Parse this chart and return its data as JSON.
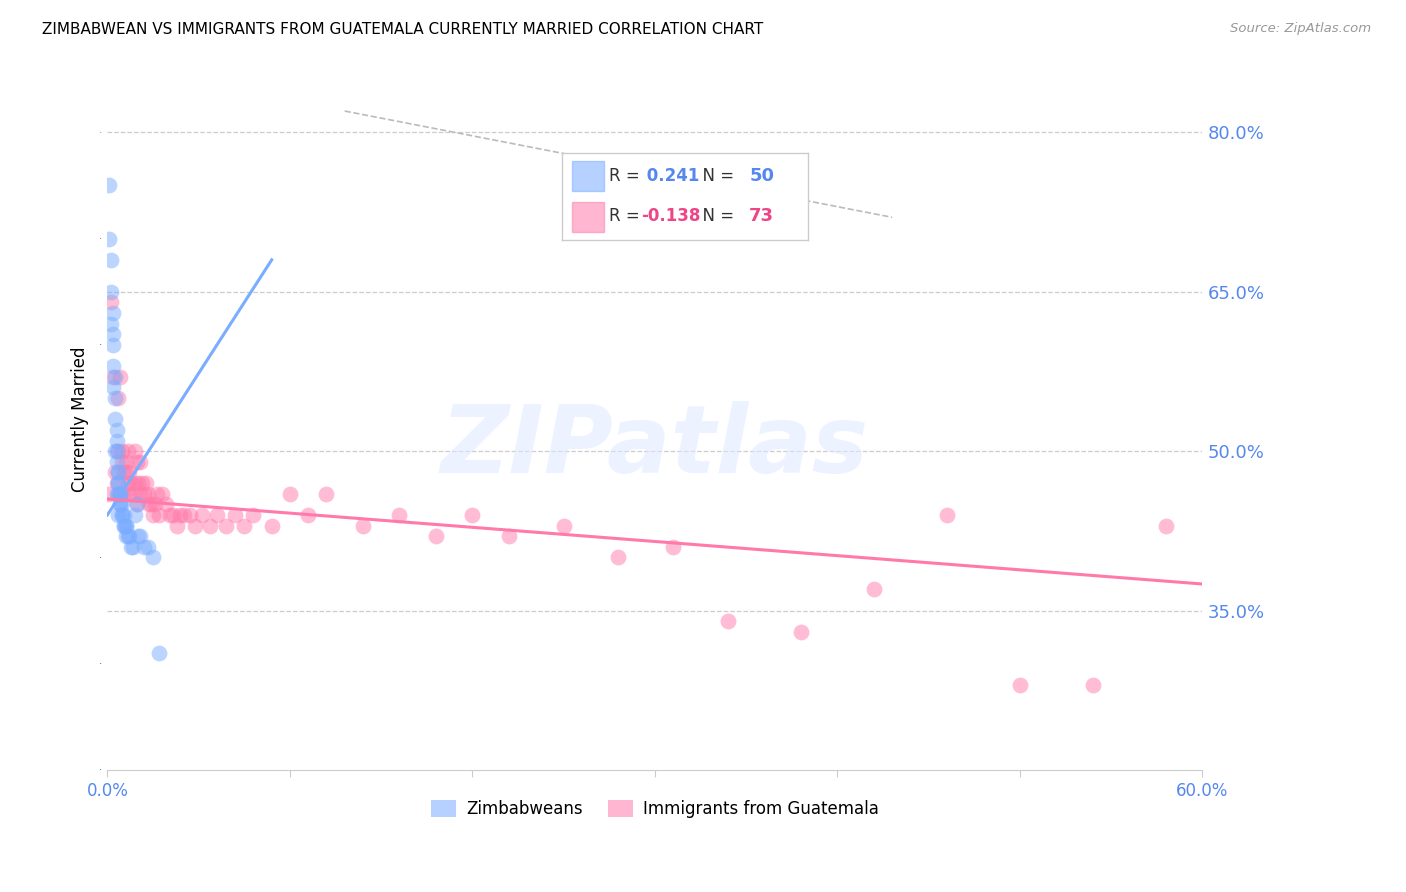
{
  "title": "ZIMBABWEAN VS IMMIGRANTS FROM GUATEMALA CURRENTLY MARRIED CORRELATION CHART",
  "source": "Source: ZipAtlas.com",
  "ylabel": "Currently Married",
  "ytick_labels": [
    "80.0%",
    "65.0%",
    "50.0%",
    "35.0%"
  ],
  "ytick_values": [
    0.8,
    0.65,
    0.5,
    0.35
  ],
  "xmin": 0.0,
  "xmax": 0.6,
  "ymin": 0.2,
  "ymax": 0.86,
  "R_zimbabwean": 0.241,
  "N_zimbabwean": 50,
  "R_guatemala": -0.138,
  "N_guatemala": 73,
  "blue_color": "#7aacff",
  "pink_color": "#ff7aaa",
  "legend1_label": "Zimbabweans",
  "legend2_label": "Immigrants from Guatemala",
  "watermark": "ZIPatlas",
  "zimbabwean_x": [
    0.001,
    0.001,
    0.002,
    0.002,
    0.002,
    0.003,
    0.003,
    0.003,
    0.003,
    0.004,
    0.004,
    0.004,
    0.005,
    0.005,
    0.005,
    0.005,
    0.006,
    0.006,
    0.006,
    0.006,
    0.006,
    0.007,
    0.007,
    0.007,
    0.007,
    0.008,
    0.008,
    0.008,
    0.009,
    0.009,
    0.009,
    0.01,
    0.01,
    0.01,
    0.011,
    0.012,
    0.013,
    0.014,
    0.015,
    0.016,
    0.017,
    0.018,
    0.02,
    0.022,
    0.025,
    0.028,
    0.003,
    0.004,
    0.005,
    0.006
  ],
  "zimbabwean_y": [
    0.75,
    0.7,
    0.68,
    0.65,
    0.62,
    0.63,
    0.61,
    0.6,
    0.58,
    0.57,
    0.55,
    0.53,
    0.52,
    0.51,
    0.5,
    0.49,
    0.48,
    0.48,
    0.47,
    0.47,
    0.46,
    0.46,
    0.46,
    0.45,
    0.45,
    0.45,
    0.44,
    0.44,
    0.44,
    0.43,
    0.43,
    0.43,
    0.43,
    0.42,
    0.42,
    0.42,
    0.41,
    0.41,
    0.44,
    0.45,
    0.42,
    0.42,
    0.41,
    0.41,
    0.4,
    0.31,
    0.56,
    0.5,
    0.46,
    0.44
  ],
  "guatemala_x": [
    0.001,
    0.002,
    0.003,
    0.004,
    0.005,
    0.006,
    0.006,
    0.007,
    0.007,
    0.008,
    0.008,
    0.009,
    0.009,
    0.01,
    0.01,
    0.011,
    0.011,
    0.012,
    0.012,
    0.013,
    0.014,
    0.015,
    0.015,
    0.016,
    0.016,
    0.017,
    0.018,
    0.018,
    0.019,
    0.02,
    0.021,
    0.022,
    0.023,
    0.024,
    0.025,
    0.026,
    0.027,
    0.028,
    0.03,
    0.032,
    0.034,
    0.036,
    0.038,
    0.04,
    0.042,
    0.045,
    0.048,
    0.052,
    0.056,
    0.06,
    0.065,
    0.07,
    0.075,
    0.08,
    0.09,
    0.1,
    0.11,
    0.12,
    0.14,
    0.16,
    0.18,
    0.2,
    0.22,
    0.25,
    0.28,
    0.31,
    0.34,
    0.38,
    0.42,
    0.46,
    0.5,
    0.54,
    0.58
  ],
  "guatemala_y": [
    0.46,
    0.64,
    0.57,
    0.48,
    0.47,
    0.5,
    0.55,
    0.46,
    0.57,
    0.49,
    0.5,
    0.48,
    0.46,
    0.49,
    0.48,
    0.47,
    0.5,
    0.48,
    0.46,
    0.47,
    0.46,
    0.5,
    0.47,
    0.49,
    0.45,
    0.47,
    0.46,
    0.49,
    0.47,
    0.46,
    0.47,
    0.46,
    0.45,
    0.45,
    0.44,
    0.45,
    0.46,
    0.44,
    0.46,
    0.45,
    0.44,
    0.44,
    0.43,
    0.44,
    0.44,
    0.44,
    0.43,
    0.44,
    0.43,
    0.44,
    0.43,
    0.44,
    0.43,
    0.44,
    0.43,
    0.46,
    0.44,
    0.46,
    0.43,
    0.44,
    0.42,
    0.44,
    0.42,
    0.43,
    0.4,
    0.41,
    0.34,
    0.33,
    0.37,
    0.44,
    0.28,
    0.28,
    0.43
  ],
  "zim_line_x": [
    0.0,
    0.09
  ],
  "zim_line_y": [
    0.44,
    0.68
  ],
  "guat_line_x": [
    0.0,
    0.6
  ],
  "guat_line_y": [
    0.455,
    0.375
  ],
  "dashed_line_x": [
    0.13,
    0.43
  ],
  "dashed_line_y": [
    0.82,
    0.72
  ]
}
